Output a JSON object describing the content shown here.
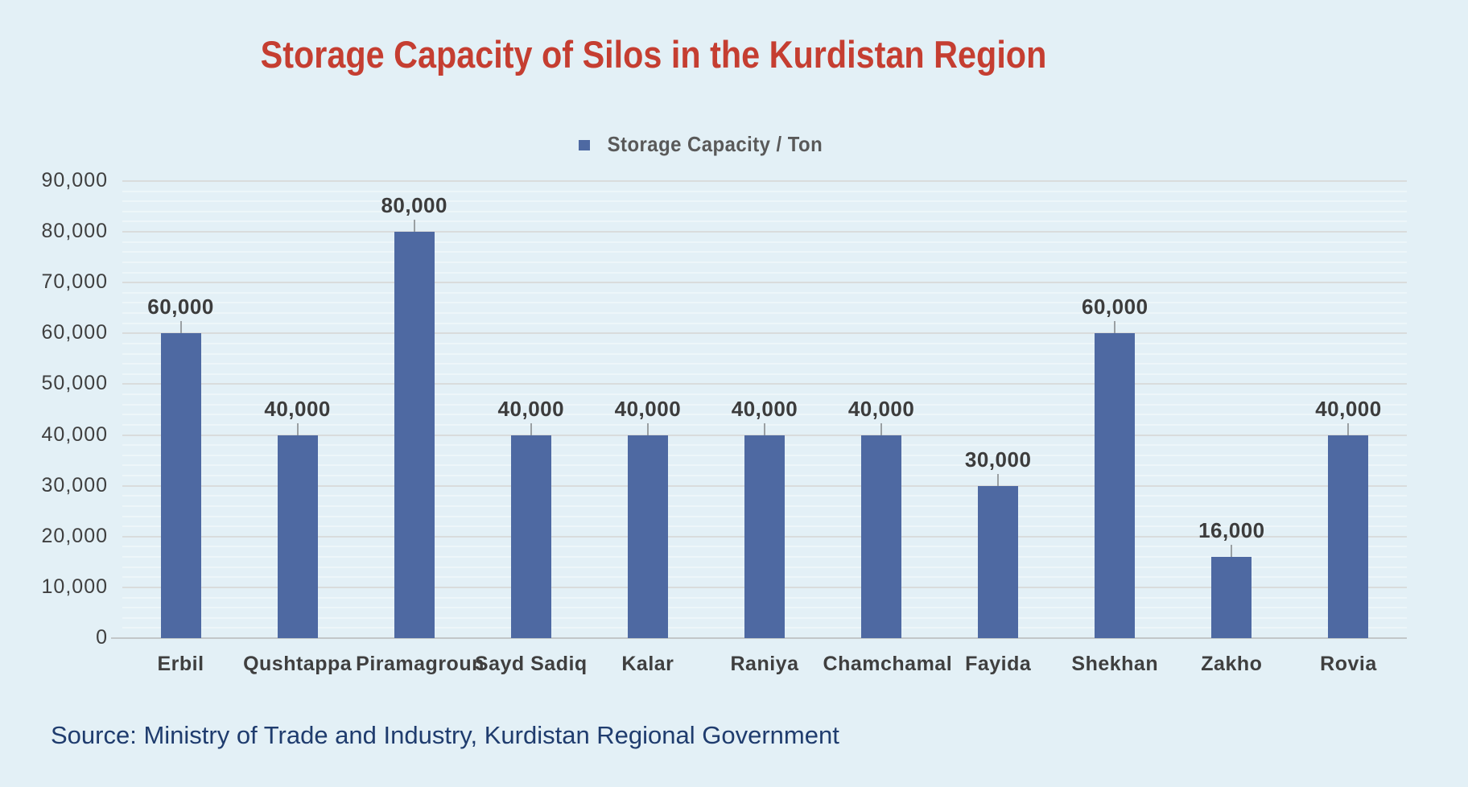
{
  "page": {
    "background": "#e3f0f6"
  },
  "title": {
    "text": "Storage Capacity of Silos in the Kurdistan Region",
    "color": "#c53e31"
  },
  "legend": {
    "label": "Storage Capacity / Ton",
    "marker_color": "#4e69a2",
    "text_color": "#595959"
  },
  "source": {
    "text": "Source: Ministry of Trade and Industry, Kurdistan Regional Government",
    "color": "#1f3c6e"
  },
  "chart_data": {
    "type": "bar",
    "title": "Storage Capacity of Silos in the Kurdistan Region",
    "series_name": "Storage Capacity / Ton",
    "categories": [
      "Erbil",
      "Qushtappa",
      "Piramagroun",
      "Sayd Sadiq",
      "Kalar",
      "Raniya",
      "Chamchamal",
      "Fayida",
      "Shekhan",
      "Zakho",
      "Rovia"
    ],
    "values": [
      60000,
      40000,
      80000,
      40000,
      40000,
      40000,
      40000,
      30000,
      60000,
      16000,
      40000
    ],
    "xlabel": "",
    "ylabel": "",
    "ylim": [
      0,
      90000
    ],
    "ytick_step": 10000,
    "minor_gridline_step": 2000,
    "grid": "horizontal-major-and-minor",
    "legend_position": "top-center",
    "bar_color": "#4e69a2",
    "data_labels": true,
    "number_format": "thousands-comma"
  },
  "axis_style": {
    "tick_label_color": "#3f3f3f",
    "data_label_color": "#3c3c3c",
    "major_gridline_color": "#d9dcdc",
    "minor_gridline_color": "#edf6f9",
    "axis_line_color": "#c2c7c9",
    "leader_line_color": "#9aa0a3"
  }
}
